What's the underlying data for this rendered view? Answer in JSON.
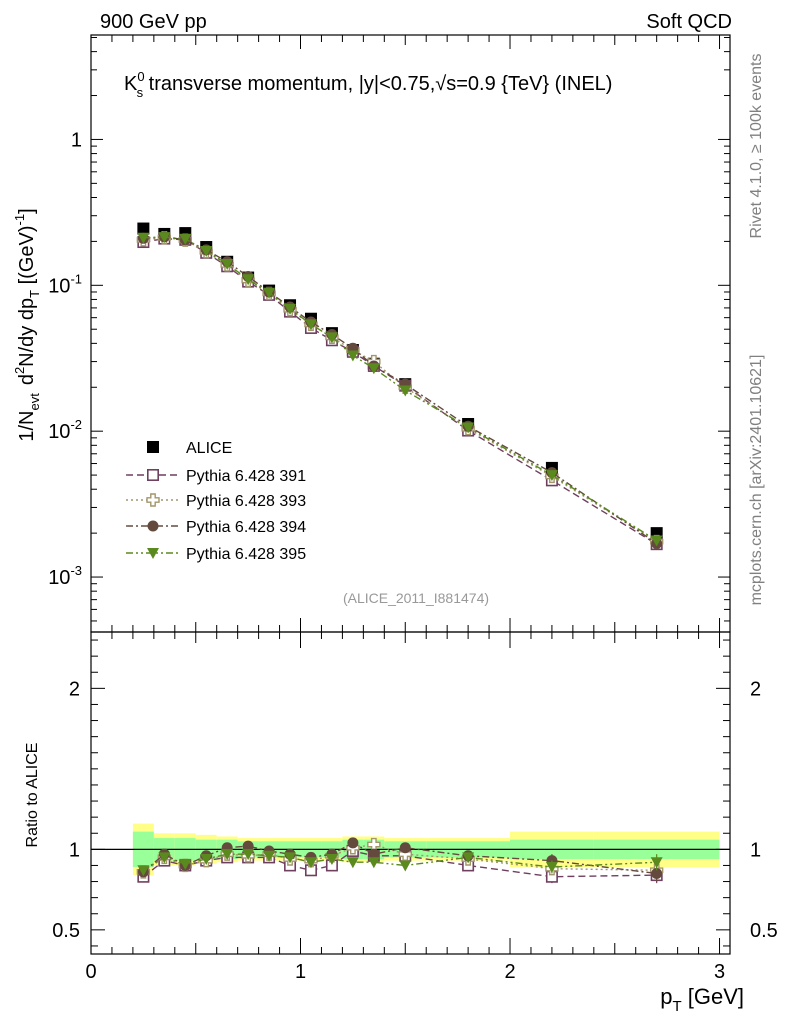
{
  "header": {
    "left": "900 GeV pp",
    "right": "Soft QCD"
  },
  "side_labels": {
    "rivet": "Rivet 4.1.0, ≥ 100k events",
    "mcplots": "mcplots.cern.ch [arXiv:2401.10621]"
  },
  "watermark": "(ALICE_2011_I881474)",
  "colors": {
    "alice": "#000000",
    "p391": "#6f3f5f",
    "p393": "#a4966b",
    "p394": "#644a3d",
    "p395": "#5a8a1e",
    "band_inner": "#99ff99",
    "band_outer": "#ffff88"
  },
  "chart_data": [
    {
      "type": "scatter",
      "panel": "main",
      "title": "K^0_s transverse momentum, |y|<0.75,√s=0.9 {TeV} (INEL)",
      "title_parts": {
        "pre": "K",
        "sup": "0",
        "sub": "s",
        "mid": " transverse momentum, |y|<0.75,",
        "root": "√",
        "post": "s=0.9 {TeV} (INEL)"
      },
      "ylabel": "1/N_evt  d²N/dy dp_T [(GeV)⁻¹]",
      "ylabel_parts": {
        "a": "1/N",
        "a_sub": "evt",
        "b": "d",
        "b_sup": "2",
        "c": "N/dy dp",
        "c_sub": "T",
        "d": " [(GeV)",
        "d_sup": "-1",
        "e": "]"
      },
      "yscale": "log",
      "ylim": [
        0.00042,
        5.2
      ],
      "xlim": [
        0,
        3.05
      ],
      "yticks": [
        {
          "value": 0.001,
          "label": "10",
          "exp": "-3"
        },
        {
          "value": 0.01,
          "label": "10",
          "exp": "-2"
        },
        {
          "value": 0.1,
          "label": "10",
          "exp": "-1"
        },
        {
          "value": 1,
          "label": "1",
          "exp": ""
        }
      ],
      "legend_position": "lower-left",
      "series": [
        {
          "name": "ALICE",
          "marker": "square-filled",
          "line": "none",
          "x": [
            0.25,
            0.35,
            0.45,
            0.55,
            0.65,
            0.75,
            0.85,
            0.95,
            1.05,
            1.15,
            1.25,
            1.35,
            1.5,
            1.8,
            2.2,
            2.7
          ],
          "y": [
            0.245,
            0.225,
            0.228,
            0.183,
            0.145,
            0.113,
            0.092,
            0.073,
            0.059,
            0.047,
            0.036,
            0.029,
            0.021,
            0.0112,
            0.0056,
            0.002
          ]
        },
        {
          "name": "Pythia 6.428 391",
          "marker": "square-open",
          "line": "dashed",
          "x": [
            0.25,
            0.35,
            0.45,
            0.55,
            0.65,
            0.75,
            0.85,
            0.95,
            1.05,
            1.15,
            1.25,
            1.35,
            1.5,
            1.8,
            2.2,
            2.7
          ],
          "y": [
            0.198,
            0.209,
            0.205,
            0.167,
            0.135,
            0.106,
            0.086,
            0.066,
            0.051,
            0.042,
            0.035,
            0.028,
            0.0205,
            0.0101,
            0.0046,
            0.00168
          ]
        },
        {
          "name": "Pythia 6.428 393",
          "marker": "cross-open",
          "line": "dotted",
          "x": [
            0.25,
            0.35,
            0.45,
            0.55,
            0.65,
            0.75,
            0.85,
            0.95,
            1.05,
            1.15,
            1.25,
            1.35,
            1.5,
            1.8,
            2.2,
            2.7
          ],
          "y": [
            0.205,
            0.212,
            0.204,
            0.17,
            0.138,
            0.108,
            0.088,
            0.068,
            0.054,
            0.044,
            0.036,
            0.03,
            0.02,
            0.0104,
            0.0049,
            0.00175
          ]
        },
        {
          "name": "Pythia 6.428 394",
          "marker": "circle-filled",
          "line": "dashdot",
          "x": [
            0.25,
            0.35,
            0.45,
            0.55,
            0.65,
            0.75,
            0.85,
            0.95,
            1.05,
            1.15,
            1.25,
            1.35,
            1.5,
            1.8,
            2.2,
            2.7
          ],
          "y": [
            0.21,
            0.215,
            0.205,
            0.175,
            0.145,
            0.115,
            0.09,
            0.071,
            0.056,
            0.046,
            0.037,
            0.028,
            0.021,
            0.0108,
            0.0052,
            0.0017
          ]
        },
        {
          "name": "Pythia 6.428 395",
          "marker": "triangle-down-filled",
          "line": "dashdotdot",
          "x": [
            0.25,
            0.35,
            0.45,
            0.55,
            0.65,
            0.75,
            0.85,
            0.95,
            1.05,
            1.15,
            1.25,
            1.35,
            1.5,
            1.8,
            2.2,
            2.7
          ],
          "y": [
            0.212,
            0.214,
            0.208,
            0.172,
            0.14,
            0.11,
            0.089,
            0.069,
            0.054,
            0.044,
            0.033,
            0.027,
            0.019,
            0.0106,
            0.005,
            0.00178
          ]
        }
      ]
    },
    {
      "type": "scatter",
      "panel": "ratio",
      "xlabel": "p_T [GeV]",
      "xlabel_parts": {
        "a": "p",
        "a_sub": "T",
        "b": " [GeV]"
      },
      "ylabel": "Ratio to ALICE",
      "ylim": [
        0.35,
        2.35
      ],
      "xlim": [
        0,
        3.05
      ],
      "xticks": [
        {
          "value": 0,
          "label": "0"
        },
        {
          "value": 1,
          "label": "1"
        },
        {
          "value": 2,
          "label": "2"
        },
        {
          "value": 3,
          "label": "3"
        }
      ],
      "yticks": [
        {
          "value": 0.5,
          "label": "0.5"
        },
        {
          "value": 1,
          "label": "1"
        },
        {
          "value": 2,
          "label": "2"
        }
      ],
      "reference_line": 1,
      "bands": {
        "edges": [
          0.2,
          0.3,
          0.4,
          0.5,
          0.6,
          0.7,
          0.8,
          0.9,
          1.0,
          1.1,
          1.2,
          1.3,
          1.4,
          1.6,
          2.0,
          2.4,
          3.0
        ],
        "inner": [
          0.11,
          0.07,
          0.07,
          0.06,
          0.06,
          0.05,
          0.05,
          0.05,
          0.05,
          0.05,
          0.06,
          0.06,
          0.05,
          0.05,
          0.06,
          0.06
        ],
        "outer": [
          0.16,
          0.1,
          0.1,
          0.09,
          0.08,
          0.07,
          0.07,
          0.07,
          0.07,
          0.07,
          0.08,
          0.08,
          0.07,
          0.07,
          0.11,
          0.11
        ]
      },
      "series": [
        {
          "name": "Pythia 6.428 391",
          "marker": "square-open",
          "line": "dashed",
          "x": [
            0.25,
            0.35,
            0.45,
            0.55,
            0.65,
            0.75,
            0.85,
            0.95,
            1.05,
            1.15,
            1.25,
            1.35,
            1.5,
            1.8,
            2.2,
            2.7
          ],
          "y": [
            0.83,
            0.93,
            0.9,
            0.93,
            0.95,
            0.95,
            0.95,
            0.9,
            0.87,
            0.9,
            0.99,
            0.96,
            0.96,
            0.9,
            0.83,
            0.84
          ],
          "err": [
            0.02,
            0.02,
            0.02,
            0.02,
            0.02,
            0.02,
            0.02,
            0.02,
            0.02,
            0.03,
            0.03,
            0.03,
            0.03,
            0.03,
            0.04,
            0.05
          ]
        },
        {
          "name": "Pythia 6.428 393",
          "marker": "cross-open",
          "line": "dotted",
          "x": [
            0.25,
            0.35,
            0.45,
            0.55,
            0.65,
            0.75,
            0.85,
            0.95,
            1.05,
            1.15,
            1.25,
            1.35,
            1.5,
            1.8,
            2.2,
            2.7
          ],
          "y": [
            0.86,
            0.95,
            0.9,
            0.93,
            0.97,
            0.96,
            0.97,
            0.94,
            0.93,
            0.96,
            1.01,
            1.03,
            0.97,
            0.94,
            0.88,
            0.87
          ],
          "err": [
            0.02,
            0.02,
            0.02,
            0.02,
            0.02,
            0.02,
            0.02,
            0.02,
            0.02,
            0.03,
            0.03,
            0.03,
            0.03,
            0.03,
            0.04,
            0.05
          ]
        },
        {
          "name": "Pythia 6.428 394",
          "marker": "circle-filled",
          "line": "dashdot",
          "x": [
            0.25,
            0.35,
            0.45,
            0.55,
            0.65,
            0.75,
            0.85,
            0.95,
            1.05,
            1.15,
            1.25,
            1.35,
            1.5,
            1.8,
            2.2,
            2.7
          ],
          "y": [
            0.86,
            0.97,
            0.9,
            0.96,
            1.01,
            1.02,
            0.99,
            0.97,
            0.95,
            0.97,
            1.04,
            0.97,
            1.01,
            0.96,
            0.93,
            0.85
          ],
          "err": [
            0.02,
            0.02,
            0.02,
            0.02,
            0.02,
            0.02,
            0.02,
            0.02,
            0.02,
            0.03,
            0.03,
            0.03,
            0.03,
            0.03,
            0.04,
            0.05
          ]
        },
        {
          "name": "Pythia 6.428 395",
          "marker": "triangle-down-filled",
          "line": "dashdotdot",
          "x": [
            0.25,
            0.35,
            0.45,
            0.55,
            0.65,
            0.75,
            0.85,
            0.95,
            1.05,
            1.15,
            1.25,
            1.35,
            1.5,
            1.8,
            2.2,
            2.7
          ],
          "y": [
            0.87,
            0.95,
            0.91,
            0.94,
            0.97,
            0.97,
            0.96,
            0.95,
            0.92,
            0.94,
            0.92,
            0.92,
            0.9,
            0.95,
            0.89,
            0.92
          ],
          "err": [
            0.02,
            0.02,
            0.02,
            0.02,
            0.02,
            0.02,
            0.02,
            0.02,
            0.02,
            0.03,
            0.03,
            0.03,
            0.03,
            0.03,
            0.04,
            0.05
          ]
        }
      ]
    }
  ]
}
